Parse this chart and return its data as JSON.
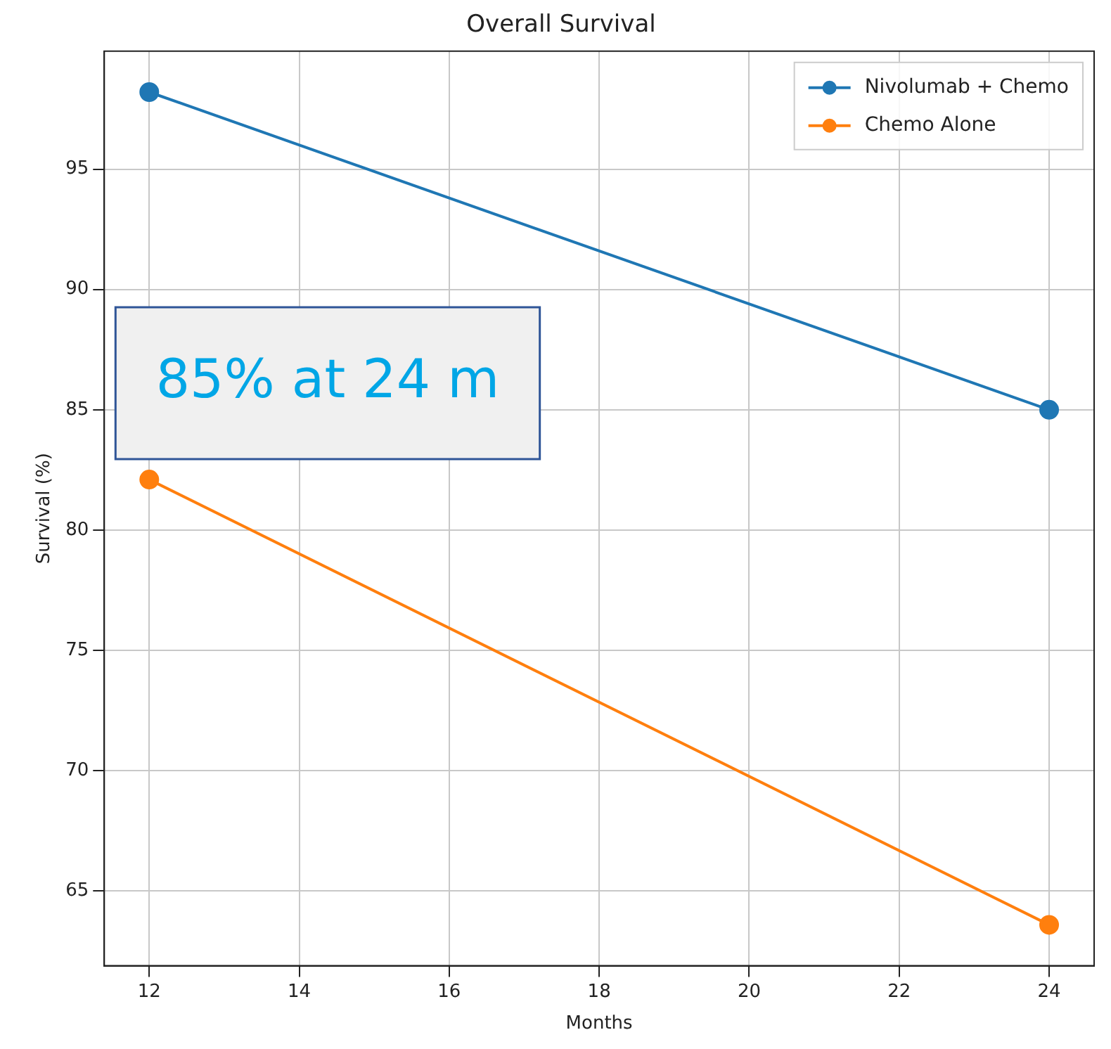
{
  "chart_data": {
    "type": "line",
    "title": "Overall Survival",
    "xlabel": "Months",
    "ylabel": "Survival (%)",
    "x": [
      12,
      24
    ],
    "series": [
      {
        "name": "Nivolumab + Chemo",
        "color": "#1f77b4",
        "values": [
          98.2,
          85
        ]
      },
      {
        "name": "Chemo Alone",
        "color": "#ff7f0e",
        "values": [
          82.1,
          63.6
        ]
      }
    ],
    "xlim": [
      11.4,
      24.6
    ],
    "xticks": [
      12,
      14,
      16,
      18,
      20,
      22,
      24
    ],
    "ylim": [
      61.9,
      99.9
    ],
    "yticks": [
      65,
      70,
      75,
      80,
      85,
      90,
      95
    ],
    "grid": true,
    "legend": "top right",
    "marker": "circle",
    "line_style": "solid",
    "annotations": [
      "85% at 24 m"
    ]
  }
}
